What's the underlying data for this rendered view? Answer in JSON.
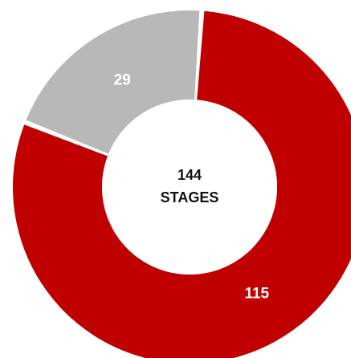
{
  "chart_data": {
    "type": "pie",
    "variant": "donut",
    "slices": [
      {
        "label": "",
        "value": 115,
        "display": "115",
        "color": "#c00000"
      },
      {
        "label": "",
        "value": 29,
        "display": "29",
        "color": "#b8b8b8"
      }
    ],
    "total": 144,
    "center_text": {
      "line1": "144",
      "line2": "STAGES"
    },
    "legend": "none"
  }
}
